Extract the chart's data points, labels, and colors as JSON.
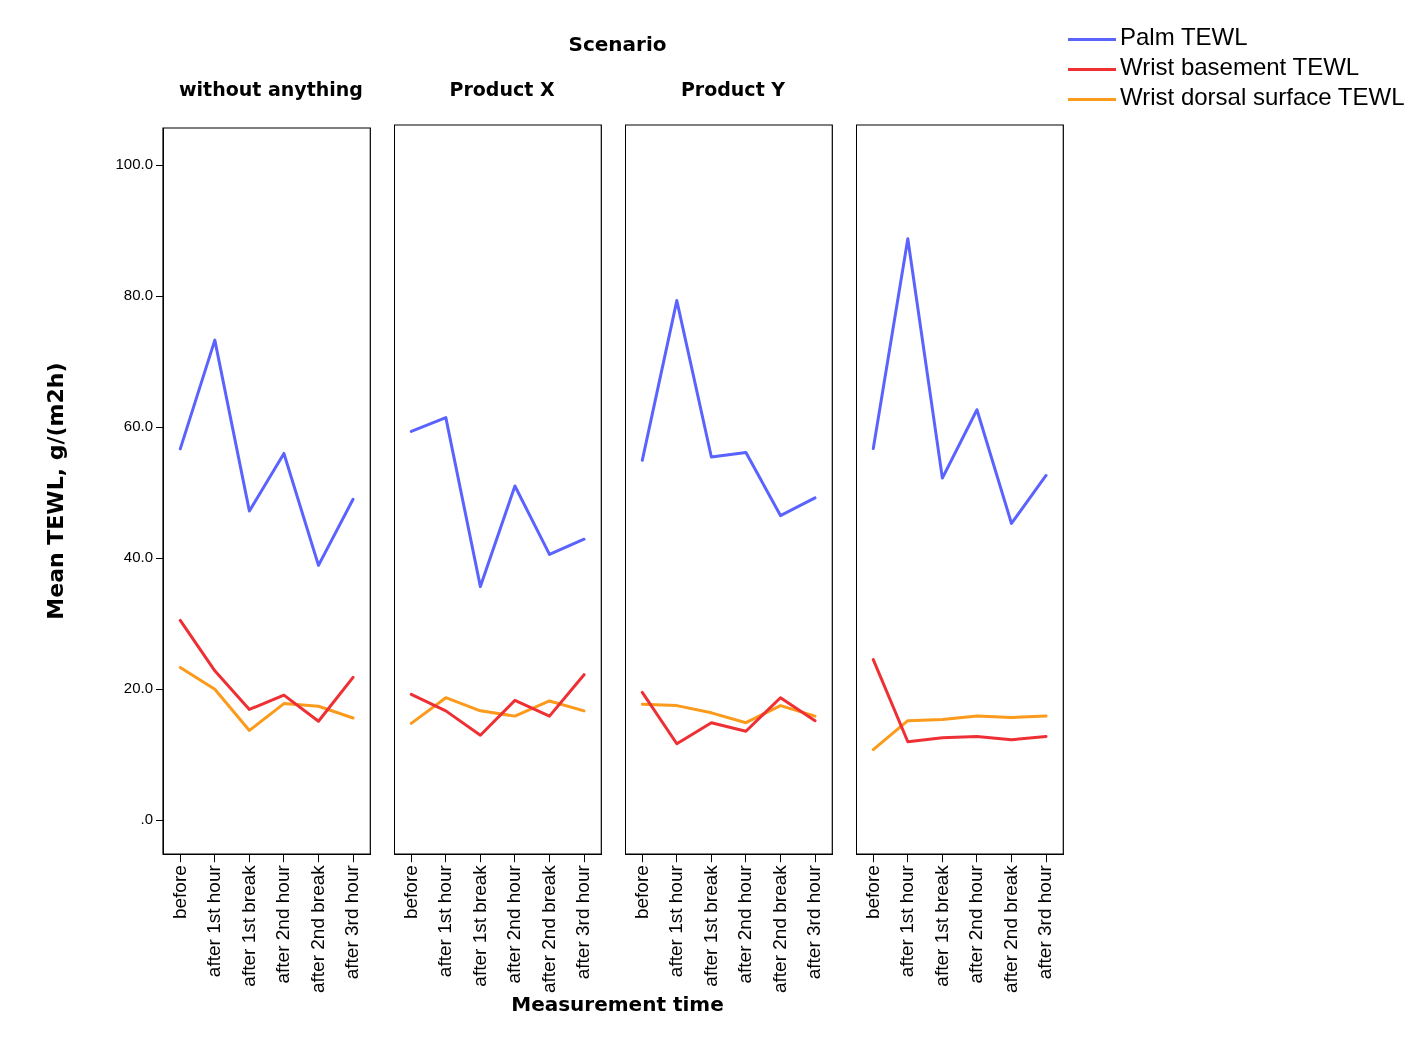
{
  "chart_data": [
    {
      "type": "line",
      "title": "without anything",
      "ylabel": "Mean TEWL, g/(m2h)",
      "legend": "top right",
      "marker": "none",
      "grid": false,
      "categories": [
        "before",
        "after 1st hour",
        "after 1st break",
        "after 2nd hour",
        "after 2nd break",
        "after 3rd hour"
      ],
      "ylim": [
        -5.2,
        105.7
      ],
      "yticks": [
        {
          "value": 0,
          "label": ".0"
        },
        {
          "value": 20,
          "label": "20.0"
        },
        {
          "value": 40,
          "label": "40.0"
        },
        {
          "value": 60,
          "label": "60.0"
        },
        {
          "value": 80,
          "label": "80.0"
        },
        {
          "value": 100,
          "label": "100.0"
        }
      ],
      "series": [
        {
          "name": "Palm TEWL",
          "color": "#5b63fe",
          "values": [
            56.7,
            73.3,
            47.2,
            56.0,
            38.9,
            49.0
          ]
        },
        {
          "name": "Wrist basement TEWL",
          "color": "#ee3035",
          "values": [
            30.5,
            22.8,
            16.9,
            19.1,
            15.1,
            21.8
          ]
        },
        {
          "name": "Wrist dorsal surface TEWL",
          "color": "#fb9a1b",
          "values": [
            23.3,
            20.0,
            13.7,
            17.8,
            17.4,
            15.6
          ]
        }
      ]
    },
    {
      "type": "line",
      "title": "Product X",
      "annotations": [
        "Scenario"
      ],
      "xlabel": "Measurement time",
      "marker": "none",
      "grid": false,
      "tick_labels": "x",
      "categories": [
        "before",
        "after 1st hour",
        "after 1st break",
        "after 2nd hour",
        "after 2nd break",
        "after 3rd hour"
      ],
      "ylim": [
        -5.2,
        105.7
      ],
      "series": [
        {
          "color": "#5b63fe",
          "values": [
            59.1,
            61.2,
            35.5,
            50.8,
            40.4,
            42.7
          ]
        },
        {
          "color": "#ee3035",
          "values": [
            19.1,
            16.6,
            12.9,
            18.2,
            15.8,
            22.1
          ]
        },
        {
          "color": "#fb9a1b",
          "values": [
            14.7,
            18.6,
            16.6,
            15.8,
            18.1,
            16.6
          ]
        }
      ]
    },
    {
      "type": "line",
      "title": "Product Y",
      "marker": "none",
      "grid": false,
      "tick_labels": "x",
      "categories": [
        "before",
        "after 1st hour",
        "after 1st break",
        "after 2nd hour",
        "after 2nd break",
        "after 3rd hour"
      ],
      "ylim": [
        -5.2,
        105.7
      ],
      "series": [
        {
          "color": "#5b63fe",
          "values": [
            54.7,
            79.0,
            55.2,
            55.9,
            46.3,
            49.0
          ]
        },
        {
          "color": "#ee3035",
          "values": [
            19.4,
            11.6,
            14.8,
            13.5,
            18.6,
            15.1
          ]
        },
        {
          "color": "#fb9a1b",
          "values": [
            17.6,
            17.4,
            16.3,
            14.8,
            17.4,
            15.8
          ]
        }
      ]
    },
    {
      "type": "line",
      "marker": "none",
      "grid": false,
      "tick_labels": "x",
      "categories": [
        "before",
        "after 1st hour",
        "after 1st break",
        "after 2nd hour",
        "after 2nd break",
        "after 3rd hour"
      ],
      "ylim": [
        -5.2,
        105.7
      ],
      "series": [
        {
          "color": "#5b63fe",
          "values": [
            56.5,
            88.4,
            52.0,
            62.4,
            45.1,
            52.4
          ]
        },
        {
          "color": "#ee3035",
          "values": [
            24.4,
            11.9,
            12.5,
            12.7,
            12.2,
            12.7
          ]
        },
        {
          "color": "#fb9a1b",
          "values": [
            10.7,
            15.1,
            15.3,
            15.8,
            15.6,
            15.8
          ]
        }
      ]
    }
  ]
}
